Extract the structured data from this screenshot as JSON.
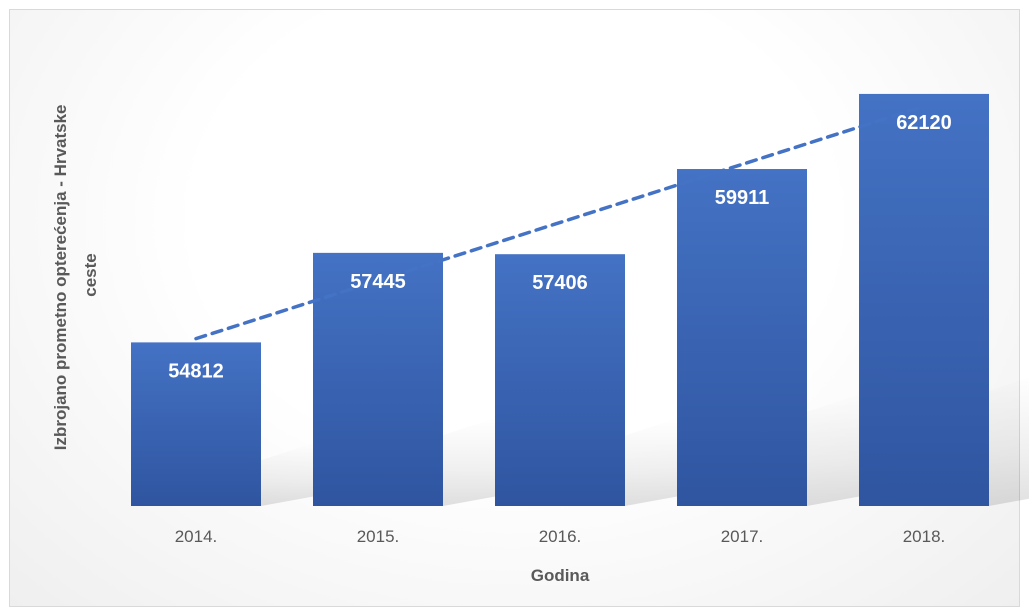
{
  "chart_data": {
    "type": "bar",
    "categories": [
      "2014.",
      "2015.",
      "2016.",
      "2017.",
      "2018."
    ],
    "values": [
      54812,
      57445,
      57406,
      59911,
      62120
    ],
    "data_labels": [
      "54812",
      "57445",
      "57406",
      "59911",
      "62120"
    ],
    "xlabel": "Godina",
    "ylabel": "Izbrojano prometno opterećenja - Hrvatske ceste",
    "ylabel_lines": [
      "Izbrojano prometno opterećenja - Hrvatske",
      "ceste"
    ],
    "ylim": [
      50000,
      63500
    ],
    "trendline": {
      "type": "linear",
      "style": "dashed"
    },
    "grid": false,
    "legend": "none",
    "colors": {
      "bar_top": "#4472c4",
      "bar_bottom": "#2f55a0",
      "trendline": "#4472c4",
      "data_label": "#ffffff",
      "axis_text": "#595959"
    }
  }
}
